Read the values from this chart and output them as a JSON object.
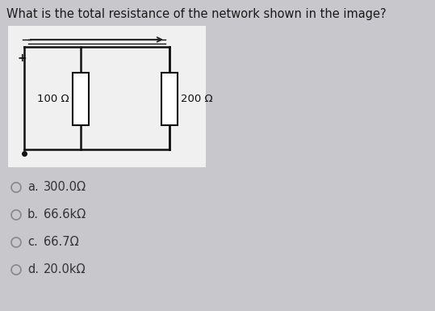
{
  "title": "What is the total resistance of the network shown in the image?",
  "title_fontsize": 10.5,
  "title_color": "#1a1a1a",
  "bg_color": "#c8c8cc",
  "circuit_bg": "#f0f0f0",
  "options": [
    {
      "label": "a.",
      "text": "300.0Ω"
    },
    {
      "label": "b.",
      "text": "66.6kΩ"
    },
    {
      "label": "c.",
      "text": "66.7Ω"
    },
    {
      "label": "d.",
      "text": "20.0kΩ"
    }
  ],
  "option_fontsize": 10.5,
  "option_color": "#333333",
  "resistor1_label": "100 Ω",
  "resistor2_label": "200 Ω",
  "wire_color": "#111111",
  "resistor_body_color": "#ffffff",
  "resistor_outline_color": "#111111",
  "plus_color": "#111111",
  "minus_color": "#111111",
  "arrow_color": "#222222",
  "figw": 5.39,
  "figh": 3.85,
  "dpi": 100
}
